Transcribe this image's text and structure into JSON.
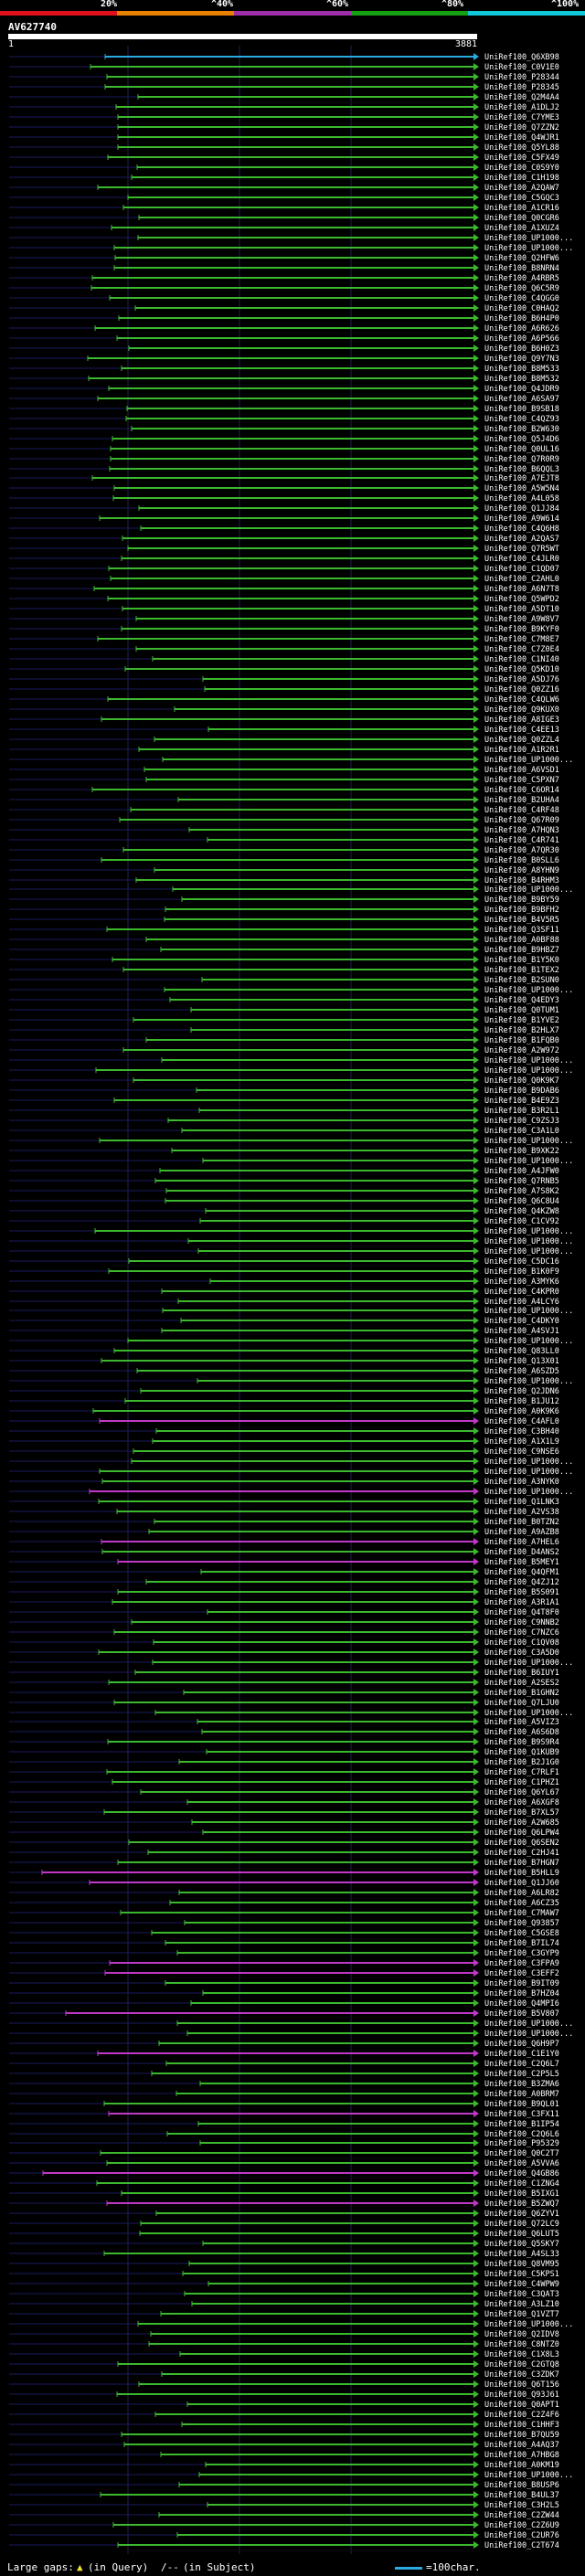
{
  "scale": {
    "labels": [
      "20%",
      "^40%",
      "^60%",
      "^80%",
      "^100%"
    ],
    "colors": [
      "#e0101c",
      "#e88000",
      "#9c2ea8",
      "#14a010",
      "#10c8d8"
    ]
  },
  "query": {
    "id": "AV627740",
    "start": "1",
    "end": "3881"
  },
  "colors": {
    "green": "#3cb82e",
    "magenta": "#c038c8",
    "cyan": "#2aaae0",
    "bg": "#000000",
    "grid": "#202050"
  },
  "hits": [
    "UniRef100_Q6XB98",
    "UniRef100_C0V1E0",
    "UniRef100_P28344",
    "UniRef100_P28345",
    "UniRef100_Q2M4A4",
    "UniRef100_A1DLJ2",
    "UniRef100_C7YME3",
    "UniRef100_Q7ZZN2",
    "UniRef100_Q4WJR1",
    "UniRef100_Q5YL88",
    "UniRef100_C5FX49",
    "UniRef100_C0S9Y0",
    "UniRef100_C1H198",
    "UniRef100_A2QAW7",
    "UniRef100_C5GQC3",
    "UniRef100_A1CR16",
    "UniRef100_Q0CGR6",
    "UniRef100_A1XUZ4",
    "UniRef100_UP1000...",
    "UniRef100_UP1000...",
    "UniRef100_Q2HFW6",
    "UniRef100_B8NRN4",
    "UniRef100_A4RBR5",
    "UniRef100_Q6C5R9",
    "UniRef100_C4QGG0",
    "UniRef100_C0HAQ2",
    "UniRef100_B6H4P0",
    "UniRef100_A6R626",
    "UniRef100_A6P566",
    "UniRef100_B6H0Z3",
    "UniRef100_Q9Y7N3",
    "UniRef100_B8M533",
    "UniRef100_B8M532",
    "UniRef100_Q4JDR9",
    "UniRef100_A6SA97",
    "UniRef100_B9SB18",
    "UniRef100_C4QZ93",
    "UniRef100_B2W630",
    "UniRef100_Q5J4D6",
    "UniRef100_Q0UL16",
    "UniRef100_Q7R0R9",
    "UniRef100_B6QQL3",
    "UniRef100_A7EJT8",
    "UniRef100_A5W5N4",
    "UniRef100_A4L058",
    "UniRef100_Q1JJ84",
    "UniRef100_A9W614",
    "UniRef100_C4Q6H8",
    "UniRef100_A2QAS7",
    "UniRef100_Q7R5WT",
    "UniRef100_C4JLR0",
    "UniRef100_C1QD07",
    "UniRef100_C2AHL0",
    "UniRef100_A6N7T8",
    "UniRef100_Q5WPD2",
    "UniRef100_A5DT10",
    "UniRef100_A9W8V7",
    "UniRef100_B9KYF0",
    "UniRef100_C7M8E7",
    "UniRef100_C7Z0E4",
    "UniRef100_C1NI40",
    "UniRef100_Q5KD10",
    "UniRef100_A5DJ76",
    "UniRef100_Q0ZZ16",
    "UniRef100_C4QLW6",
    "UniRef100_Q9KUX0",
    "UniRef100_A8IGE3",
    "UniRef100_C4EE13",
    "UniRef100_Q0ZZL4",
    "UniRef100_A1R2R1",
    "UniRef100_UP1000...",
    "UniRef100_A6VSD1",
    "UniRef100_C5PXN7",
    "UniRef100_C6OR14",
    "UniRef100_B2UHA4",
    "UniRef100_C4RF48",
    "UniRef100_Q67R09",
    "UniRef100_A7HQN3",
    "UniRef100_C4R741",
    "UniRef100_A7QR30",
    "UniRef100_B0SLL6",
    "UniRef100_A8YHN9",
    "UniRef100_B4RHM3",
    "UniRef100_UP1000...",
    "UniRef100_B9BY59",
    "UniRef100_B9BFH2",
    "UniRef100_B4V5R5",
    "UniRef100_Q3SF11",
    "UniRef100_A0BF88",
    "UniRef100_B9HBZ7",
    "UniRef100_B1Y5K0",
    "UniRef100_B1TEX2",
    "UniRef100_B2SUN0",
    "UniRef100_UP1000...",
    "UniRef100_Q4EDY3",
    "UniRef100_Q0TUM1",
    "UniRef100_B1YVE2",
    "UniRef100_B2HLX7",
    "UniRef100_B1FQB0",
    "UniRef100_A2W972",
    "UniRef100_UP1000...",
    "UniRef100_UP1000...",
    "UniRef100_Q0K9K7",
    "UniRef100_B9DAB6",
    "UniRef100_B4E9Z3",
    "UniRef100_B3R2L1",
    "UniRef100_C9ZSJ3",
    "UniRef100_C3A1L0",
    "UniRef100_UP1000...",
    "UniRef100_B9XK22",
    "UniRef100_UP1000...",
    "UniRef100_A4JFW0",
    "UniRef100_Q7RNB5",
    "UniRef100_A7S8K2",
    "UniRef100_Q6C8U4",
    "UniRef100_Q4KZW8",
    "UniRef100_C1CV92",
    "UniRef100_UP1000...",
    "UniRef100_UP1000...",
    "UniRef100_UP1000...",
    "UniRef100_C5DC16",
    "UniRef100_B1K0F9",
    "UniRef100_A3MYK6",
    "UniRef100_C4KPR0",
    "UniRef100_A4LCY6",
    "UniRef100_UP1000...",
    "UniRef100_C4DKY0",
    "UniRef100_A4SVJ1",
    "UniRef100_UP1000...",
    "UniRef100_Q83LL0",
    "UniRef100_Q13X01",
    "UniRef100_A6SZD5",
    "UniRef100_UP1000...",
    "UniRef100_Q2JDN6",
    "UniRef100_B1JU12",
    "UniRef100_A0K9K6",
    "UniRef100_C4AFL0",
    "UniRef100_C3BH40",
    "UniRef100_A1X1L9",
    "UniRef100_C9NSE6",
    "UniRef100_UP1000...",
    "UniRef100_UP1000...",
    "UniRef100_A3NYK0",
    "UniRef100_UP1000...",
    "UniRef100_Q1LNK3",
    "UniRef100_A2VS38",
    "UniRef100_B0TZN2",
    "UniRef100_A9AZB8",
    "UniRef100_A7HEL6",
    "UniRef100_D4ANS2",
    "UniRef100_B5MEY1",
    "UniRef100_Q4QFM1",
    "UniRef100_Q4ZJ12",
    "UniRef100_B5S091",
    "UniRef100_A3R1A1",
    "UniRef100_Q4T8F0",
    "UniRef100_C9NNB2",
    "UniRef100_C7NZC6",
    "UniRef100_C1QV08",
    "UniRef100_C3A5D0",
    "UniRef100_UP1000...",
    "UniRef100_B6IUY1",
    "UniRef100_A2SES2",
    "UniRef100_B1GHN2",
    "UniRef100_Q7LJU0",
    "UniRef100_UP1000...",
    "UniRef100_A5VIZ3",
    "UniRef100_A6S6D8",
    "UniRef100_B9S9R4",
    "UniRef100_Q1KUB9",
    "UniRef100_B2J1G0",
    "UniRef100_C7RLF1",
    "UniRef100_C1PHZ1",
    "UniRef100_Q6YL67",
    "UniRef100_A6XGF8",
    "UniRef100_B7XL57",
    "UniRef100_A2W685",
    "UniRef100_Q6LPW4",
    "UniRef100_Q6SEN2",
    "UniRef100_C2HJ41",
    "UniRef100_B7HGN7",
    "UniRef100_B5HLL9",
    "UniRef100_Q1JJ60",
    "UniRef100_A6LR82",
    "UniRef100_A6CZ35",
    "UniRef100_C7MAW7",
    "UniRef100_Q93857",
    "UniRef100_C5GSE8",
    "UniRef100_B7IL74",
    "UniRef100_C3GYP9",
    "UniRef100_C3FPA9",
    "UniRef100_C3EFF2",
    "UniRef100_B9IT09",
    "UniRef100_B7HZ04",
    "UniRef100_Q4MPI6",
    "UniRef100_B5V807",
    "UniRef100_UP1000...",
    "UniRef100_UP1000...",
    "UniRef100_Q6H9P7",
    "UniRef100_C1E1Y0",
    "UniRef100_C2Q6L7",
    "UniRef100_C2P5L5",
    "UniRef100_B3ZMA6",
    "UniRef100_A0BRM7",
    "UniRef100_B9QL01",
    "UniRef100_C3FX11",
    "UniRef100_B1IP54",
    "UniRef100_C2Q6L6",
    "UniRef100_P95329",
    "UniRef100_Q0C2T7",
    "UniRef100_A5VVA6",
    "UniRef100_Q4GB86",
    "UniRef100_C1ZNG4",
    "UniRef100_B5IXG1",
    "UniRef100_B5ZWQ7",
    "UniRef100_Q6ZYV1",
    "UniRef100_Q72LC9",
    "UniRef100_Q6LUT5",
    "UniRef100_Q5SKY7",
    "UniRef100_A4SL33",
    "UniRef100_Q8VM95",
    "UniRef100_C5KPS1",
    "UniRef100_C4WPW9",
    "UniRef100_C3QAT3",
    "UniRef100_A3LZ10",
    "UniRef100_Q1VZT7",
    "UniRef100_UP1000...",
    "UniRef100_Q2IDV8",
    "UniRef100_C8NTZ0",
    "UniRef100_C1X8L3",
    "UniRef100_C2GTQ8",
    "UniRef100_C3ZDK7",
    "UniRef100_Q6T156",
    "UniRef100_Q93J61",
    "UniRef100_Q0APT1",
    "UniRef100_C2Z4F6",
    "UniRef100_C1HHF3",
    "UniRef100_B7QU59",
    "UniRef100_A4AQ37",
    "UniRef100_A7HBG8",
    "UniRef100_A0KM19",
    "UniRef100_UP1000...",
    "UniRef100_B8USP6",
    "UniRef100_B4UL37",
    "UniRef100_C3H2L5",
    "UniRef100_C2ZW44",
    "UniRef100_C2Z6U9",
    "UniRef100_C2UR76",
    "UniRef100_C2T674"
  ],
  "legend": {
    "gaps_label": "Large gaps:",
    "in_query": "(in Query)",
    "in_subject": "(in Subject)",
    "scale_note": "=100char."
  }
}
